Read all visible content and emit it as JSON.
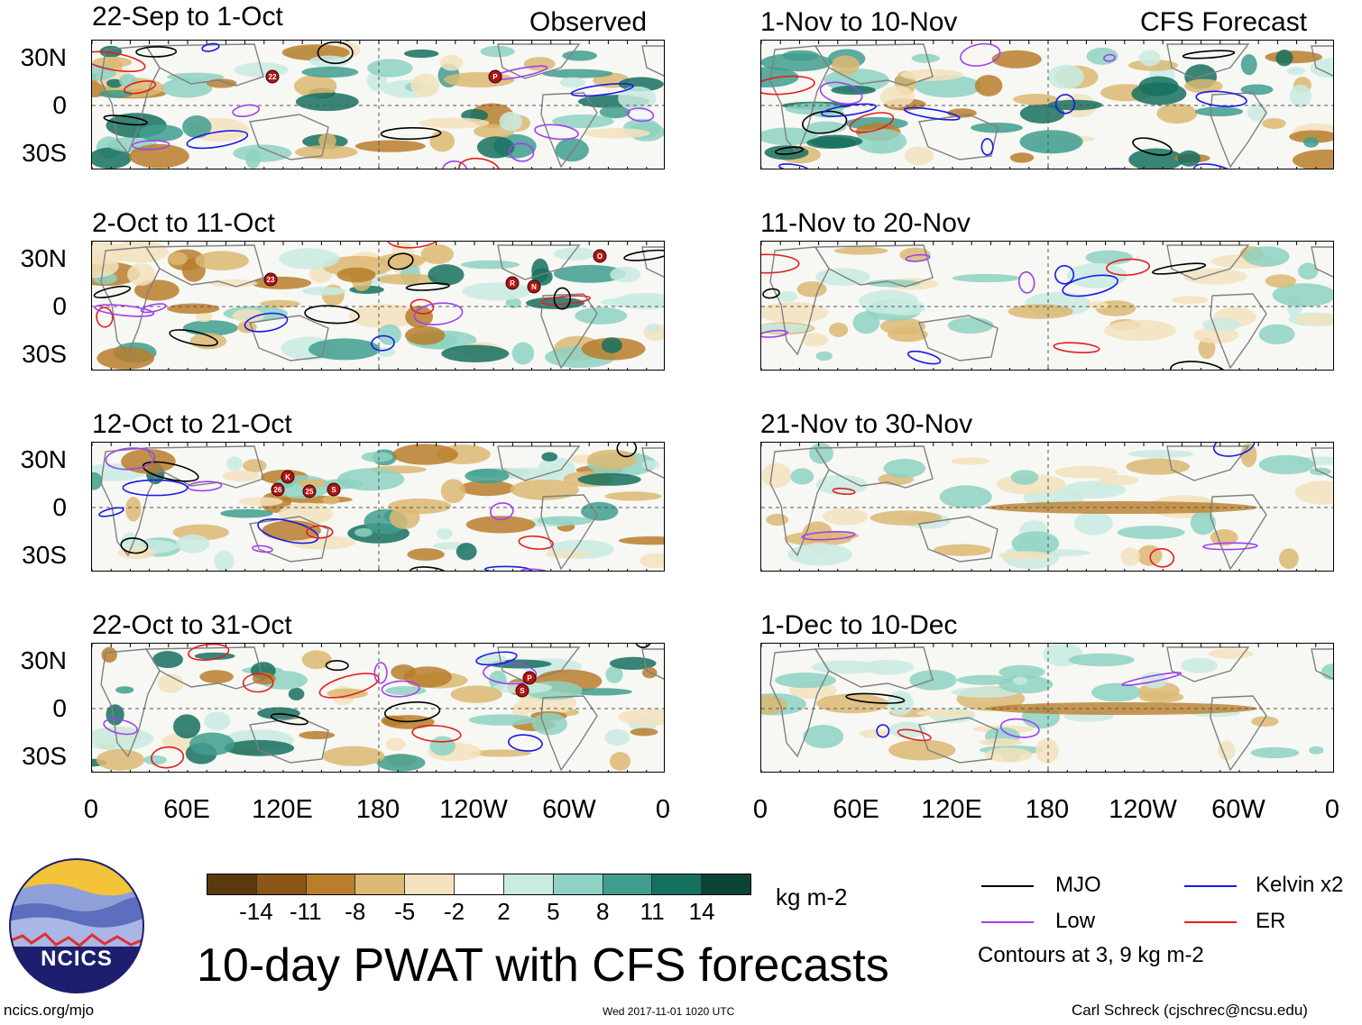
{
  "observed_header": "Observed",
  "forecast_header": "CFS Forecast",
  "panels_left": [
    {
      "title": "22-Sep to 1-Oct"
    },
    {
      "title": "2-Oct to 11-Oct"
    },
    {
      "title": "12-Oct to 21-Oct"
    },
    {
      "title": "22-Oct to 31-Oct"
    }
  ],
  "panels_right": [
    {
      "title": "1-Nov to 10-Nov"
    },
    {
      "title": "11-Nov to 20-Nov"
    },
    {
      "title": "21-Nov to 30-Nov"
    },
    {
      "title": "1-Dec to 10-Dec"
    }
  ],
  "lat_labels": [
    "30N",
    "0",
    "30S"
  ],
  "lon_labels": [
    "0",
    "60E",
    "120E",
    "180",
    "120W",
    "60W",
    "0"
  ],
  "colorbar": {
    "unit": "kg m-2",
    "tick_labels": [
      "-14",
      "-11",
      "-8",
      "-5",
      "-2",
      "2",
      "5",
      "8",
      "11",
      "14"
    ],
    "colors": [
      "#5a3a0c",
      "#8a5616",
      "#b97e2c",
      "#dcb872",
      "#f3e2bd",
      "#ffffff",
      "#c9ebe2",
      "#8dd2c2",
      "#3f9e8e",
      "#16705f",
      "#0a4436"
    ]
  },
  "legend": {
    "mjo": "MJO",
    "mjo_color": "#000000",
    "kelvin": "Kelvin x2",
    "kelvin_color": "#1a1ae6",
    "low": "Low",
    "low_color": "#a040f0",
    "er": "ER",
    "er_color": "#e02020",
    "note": "Contours at 3, 9 kg m-2"
  },
  "main_title": "10-day PWAT with CFS forecasts",
  "logo_text": "NCICS",
  "footer_left": "ncics.org/mjo",
  "footer_center": "Wed 2017-11-01 1020 UTC",
  "footer_right": "Carl Schreck (cjschrec@ncsu.edu)",
  "storm_markers": [
    {
      "panel": 0,
      "label": "22"
    },
    {
      "panel": 0,
      "label": "P"
    },
    {
      "panel": 1,
      "label": "23"
    },
    {
      "panel": 1,
      "label": "R"
    },
    {
      "panel": 1,
      "label": "N"
    },
    {
      "panel": 1,
      "label": "O"
    },
    {
      "panel": 2,
      "label": "K"
    },
    {
      "panel": 2,
      "label": "26"
    },
    {
      "panel": 2,
      "label": "25"
    },
    {
      "panel": 2,
      "label": "S"
    },
    {
      "panel": 3,
      "label": "P"
    },
    {
      "panel": 3,
      "label": "S"
    }
  ]
}
